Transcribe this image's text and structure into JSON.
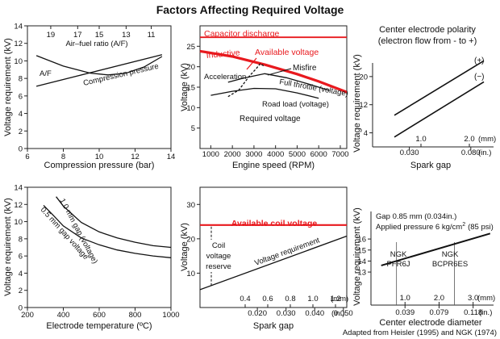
{
  "figure": {
    "title": "Factors Affecting Required Voltage",
    "credit": "Adapted from Heisler (1995) and NGK (1974)"
  },
  "colors": {
    "ink": "#111111",
    "red": "#e8191e",
    "axis": "#222222"
  },
  "chart_data": [
    {
      "id": "p1",
      "type": "line",
      "title": "",
      "xlabel": "Compression pressure (bar)",
      "ylabel": "Voltage requirement (kV)",
      "xlim": [
        6,
        14
      ],
      "ylim": [
        0,
        14
      ],
      "xticks": [
        6,
        8,
        10,
        12,
        14
      ],
      "yticks": [
        0,
        2,
        4,
        6,
        8,
        10,
        12,
        14
      ],
      "top_axis_label": "Air–fuel ratio (A/F)",
      "top_ticks": [
        {
          "label": "19",
          "x": 7.3
        },
        {
          "label": "17",
          "x": 8.8
        },
        {
          "label": "15",
          "x": 10.0
        },
        {
          "label": "13",
          "x": 11.5
        },
        {
          "label": "11",
          "x": 12.9
        }
      ],
      "series": [
        {
          "name": "A/F",
          "points": [
            [
              6.5,
              10.6
            ],
            [
              8,
              9.4
            ],
            [
              9.5,
              8.6
            ],
            [
              10.5,
              8.4
            ],
            [
              11.5,
              8.6
            ],
            [
              12.5,
              9.3
            ],
            [
              13.5,
              10.5
            ]
          ]
        },
        {
          "name": "Compression pressure",
          "points": [
            [
              6.5,
              7.1
            ],
            [
              13.5,
              10.7
            ]
          ]
        }
      ],
      "annotations": [
        "A/F",
        "Compression pressure"
      ]
    },
    {
      "id": "p2",
      "type": "line",
      "xlabel": "Engine speed (RPM)",
      "ylabel": "Voltage (kV)",
      "xlim": [
        500,
        7300
      ],
      "ylim": [
        0,
        30
      ],
      "xticks": [
        1000,
        2000,
        3000,
        4000,
        5000,
        6000,
        7000
      ],
      "yticks": [
        5,
        10,
        15,
        20,
        25
      ],
      "series": [
        {
          "name": "Capacitor discharge",
          "points": [
            [
              500,
              27.2
            ],
            [
              7300,
              27.2
            ]
          ]
        },
        {
          "name": "Inductive",
          "points": [
            [
              500,
              23.8
            ],
            [
              2000,
              22.5
            ],
            [
              3500,
              20.5
            ],
            [
              5000,
              18.2
            ],
            [
              6000,
              16.4
            ],
            [
              7300,
              13.8
            ]
          ]
        },
        {
          "name": "Full throttle",
          "points": [
            [
              1800,
              16.2
            ],
            [
              2500,
              17.2
            ],
            [
              3500,
              18.3
            ],
            [
              4500,
              17.3
            ],
            [
              5500,
              15.8
            ],
            [
              6500,
              14.2
            ]
          ]
        },
        {
          "name": "Road load",
          "points": [
            [
              1000,
              13.0
            ],
            [
              2000,
              14.0
            ],
            [
              3000,
              14.7
            ],
            [
              4000,
              14.6
            ],
            [
              5000,
              13.6
            ],
            [
              6000,
              12.3
            ]
          ]
        },
        {
          "name": "Acceleration",
          "points": [
            [
              1800,
              12.7
            ],
            [
              2300,
              14.3
            ],
            [
              2800,
              17.8
            ],
            [
              3100,
              19.5
            ],
            [
              3300,
              20.8
            ],
            [
              3500,
              20.0
            ]
          ]
        }
      ],
      "annotations": [
        "Capacitor discharge",
        "Inductive",
        "Available voltage",
        "Misfire",
        "Acceleration",
        "Full throttle (voltage)",
        "Road load (voltage)",
        "Required voltage"
      ]
    },
    {
      "id": "p3",
      "type": "line",
      "title": "Center electrode polarity",
      "subtitle": "(electron flow from - to +)",
      "xlabel": "Spark gap",
      "ylabel": "Voltage requirement (kV)",
      "xlim": [
        0,
        2.5
      ],
      "ylim": [
        0,
        28
      ],
      "yticks": [
        4,
        12,
        20
      ],
      "mm_ticks": [
        {
          "label": "1.0",
          "x": 1.0
        },
        {
          "label": "2.0",
          "x": 2.0
        }
      ],
      "mm_unit": "(mm)",
      "in_ticks": [
        {
          "label": "0.030",
          "x": 0.76
        },
        {
          "label": "0.080",
          "x": 2.03
        }
      ],
      "in_unit": "(in.)",
      "series": [
        {
          "name": "(+)",
          "points": [
            [
              0.45,
              9.0
            ],
            [
              2.3,
              24.5
            ]
          ]
        },
        {
          "name": "(−)",
          "points": [
            [
              0.45,
              2.8
            ],
            [
              2.3,
              18.5
            ]
          ]
        }
      ],
      "annotations": [
        "(+)",
        "(−)"
      ]
    },
    {
      "id": "p4",
      "type": "line",
      "xlabel": "Electrode temperature (ºC)",
      "ylabel": "Voltage requirement (kV)",
      "xlim": [
        200,
        1000
      ],
      "ylim": [
        0,
        14
      ],
      "xticks": [
        200,
        400,
        600,
        800,
        1000
      ],
      "yticks": [
        0,
        2,
        4,
        6,
        8,
        10,
        12,
        14
      ],
      "series": [
        {
          "name": "1.0 mm gap (voltage)",
          "points": [
            [
              360,
              12.9
            ],
            [
              400,
              11.8
            ],
            [
              500,
              9.9
            ],
            [
              600,
              8.8
            ],
            [
              700,
              8.1
            ],
            [
              800,
              7.6
            ],
            [
              900,
              7.2
            ],
            [
              1000,
              7.0
            ]
          ]
        },
        {
          "name": "0.5 mm gap voltage",
          "points": [
            [
              290,
              11.9
            ],
            [
              350,
              10.6
            ],
            [
              400,
              9.5
            ],
            [
              500,
              8.1
            ],
            [
              600,
              7.3
            ],
            [
              700,
              6.7
            ],
            [
              800,
              6.3
            ],
            [
              900,
              6.0
            ],
            [
              1000,
              5.8
            ]
          ]
        }
      ],
      "annotations": [
        "1.0 mm gap (voltage)",
        "0.5 mm gap voltage"
      ]
    },
    {
      "id": "p5",
      "type": "line",
      "xlabel": "Spark gap",
      "ylabel": "Voltage (kV)",
      "xlim": [
        0,
        1.3
      ],
      "ylim": [
        0,
        35
      ],
      "yticks": [
        10,
        20,
        30
      ],
      "mm_ticks": [
        {
          "label": "0.4",
          "x": 0.4
        },
        {
          "label": "0.6",
          "x": 0.6
        },
        {
          "label": "0.8",
          "x": 0.8
        },
        {
          "label": "1.0",
          "x": 1.0
        },
        {
          "label": "1.2",
          "x": 1.2
        }
      ],
      "mm_unit": "(mm)",
      "in_ticks": [
        {
          "label": "0.020",
          "x": 0.508
        },
        {
          "label": "0.030",
          "x": 0.762
        },
        {
          "label": "0.040",
          "x": 1.016
        },
        {
          "label": "0.050",
          "x": 1.27
        }
      ],
      "in_unit": "(in.)",
      "series": [
        {
          "name": "Available coil voltage",
          "points": [
            [
              0,
              24
            ],
            [
              1.3,
              24
            ]
          ]
        },
        {
          "name": "Voltage requirement",
          "points": [
            [
              0,
              5.2
            ],
            [
              1.3,
              20.8
            ]
          ]
        }
      ],
      "reserve_marker": {
        "x": 0.1,
        "from": 6.4,
        "to": 24
      },
      "annotations": [
        "Available coil voltage",
        "Coil",
        "voltage",
        "reserve",
        "Voltage requirement"
      ]
    },
    {
      "id": "p6",
      "type": "line",
      "xlabel": "Center electrode diameter",
      "ylabel": "Voltage requirement (kV)",
      "xlim": [
        0,
        3.6
      ],
      "ylim": [
        10,
        18.5
      ],
      "yticks": [
        13,
        14,
        15,
        16
      ],
      "mm_ticks": [
        {
          "label": "1.0",
          "x": 1.0
        },
        {
          "label": "2.0",
          "x": 2.0
        },
        {
          "label": "3.0",
          "x": 3.0
        }
      ],
      "mm_unit": "(mm)",
      "in_ticks": [
        {
          "label": "0.039",
          "x": 1.0
        },
        {
          "label": "0.079",
          "x": 2.0
        },
        {
          "label": "0.118",
          "x": 3.0
        }
      ],
      "in_unit": "(in.)",
      "series": [
        {
          "name": "Voltage requirement",
          "points": [
            [
              0.3,
              13.6
            ],
            [
              3.5,
              16.5
            ]
          ]
        }
      ],
      "reference_lines": [
        {
          "label": "NGK PFR6J",
          "x": 0.75
        },
        {
          "label": "NGK BCPR6ES",
          "x": 2.45
        }
      ],
      "condition": "Gap 0.85 mm (0.034in.)",
      "condition2_prefix": "Applied pressure 6 kg/cm",
      "condition2_sup": "2",
      "condition2_suffix": "(85 psi)",
      "annotations": [
        "NGK",
        "PFR6J",
        "NGK",
        "BCPR6ES"
      ]
    }
  ]
}
